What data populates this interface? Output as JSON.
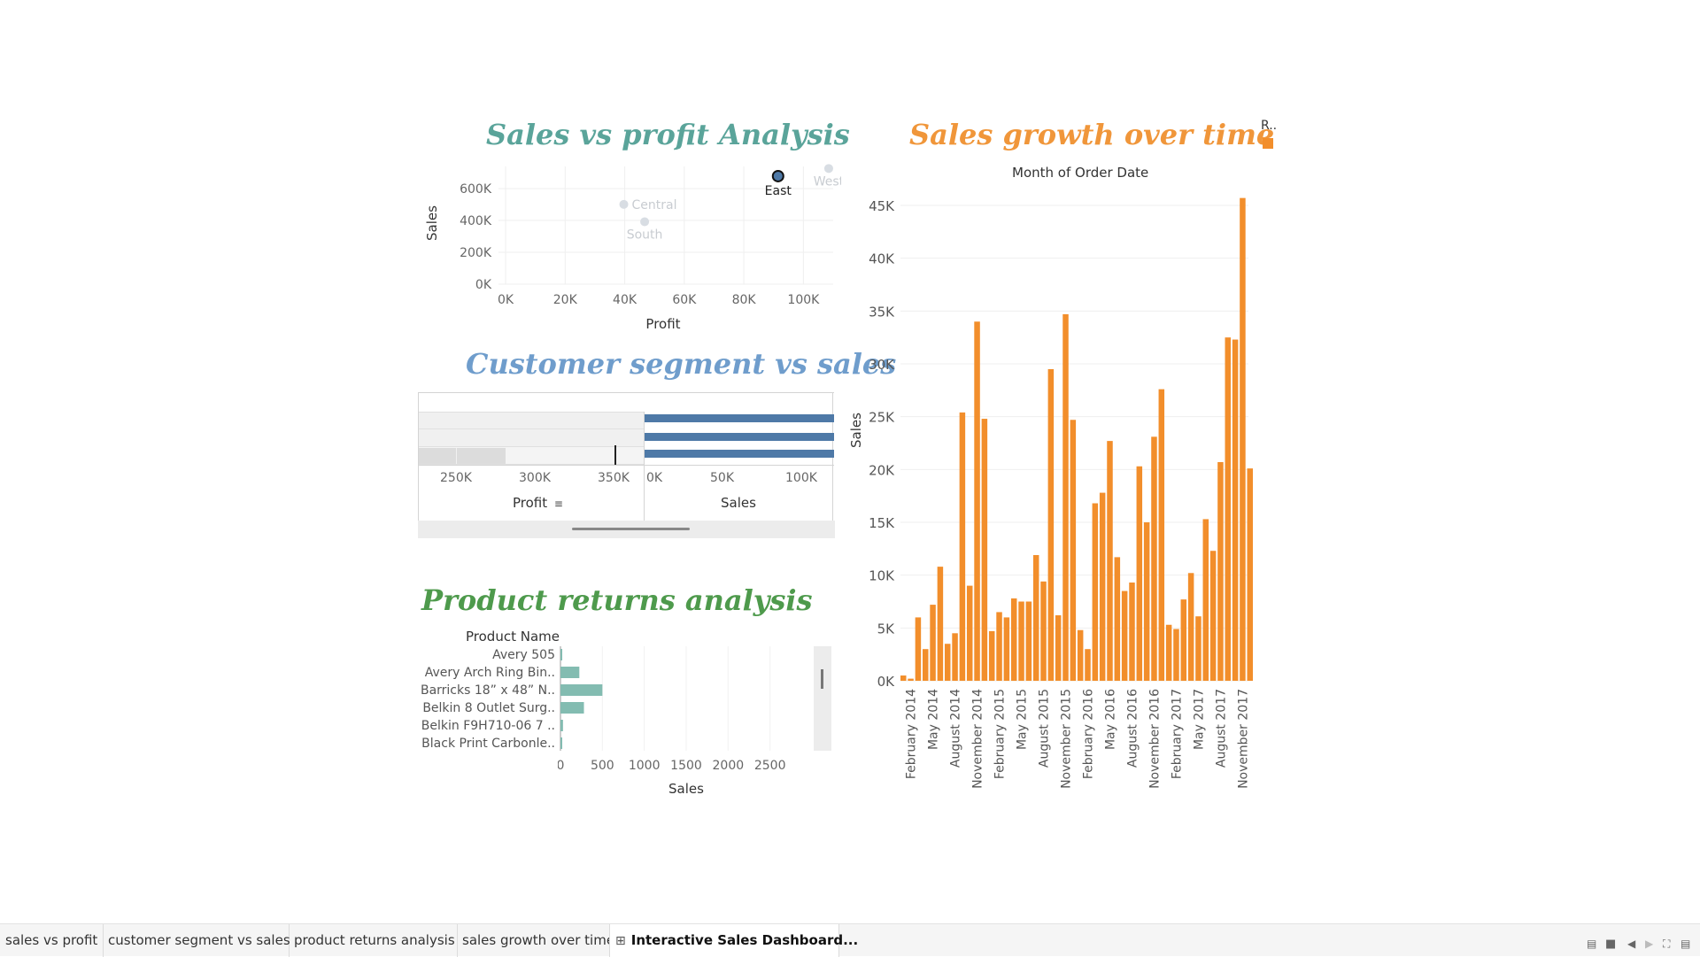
{
  "titles": {
    "scatter": "Sales vs profit Analysis",
    "segment": "Customer segment vs sales",
    "returns": "Product returns analysis",
    "growth": "Sales growth over time"
  },
  "colors": {
    "scatter_title": "#5aa49a",
    "segment_title": "#6f9dcc",
    "returns_title": "#4e9a4c",
    "growth_title": "#f0963a",
    "bar_blue": "#4e79a7",
    "bar_teal": "#83bcb1",
    "bar_orange": "#f28e2b"
  },
  "legend": {
    "title": "R..",
    "swatch_color": "#f28e2b"
  },
  "tabs": [
    {
      "label": "sales vs profit"
    },
    {
      "label": "customer segment vs sales"
    },
    {
      "label": "product returns analysis"
    },
    {
      "label": "sales growth over time"
    },
    {
      "label": "Interactive Sales Dashboard...",
      "active": true,
      "icon": "dashboard-grid-icon"
    }
  ],
  "chart_data": [
    {
      "id": "scatter",
      "type": "scatter",
      "xlabel": "Profit",
      "ylabel": "Sales",
      "x_ticks": [
        "0K",
        "20K",
        "40K",
        "60K",
        "80K",
        "100K"
      ],
      "y_ticks": [
        "0K",
        "200K",
        "400K",
        "600K"
      ],
      "xlim": [
        0,
        110000
      ],
      "ylim": [
        0,
        750000
      ],
      "points": [
        {
          "label": "East",
          "x": 91500,
          "y": 678000,
          "selected": true
        },
        {
          "label": "West",
          "x": 108500,
          "y": 726000,
          "selected": false
        },
        {
          "label": "Central",
          "x": 39700,
          "y": 501000,
          "selected": false
        },
        {
          "label": "South",
          "x": 46700,
          "y": 392000,
          "selected": false
        }
      ]
    },
    {
      "id": "segment",
      "type": "bar",
      "orientation": "horizontal",
      "left_axis": {
        "label": "Profit",
        "ticks": [
          "250K",
          "300K",
          "350K"
        ],
        "sort_icon": "sort-descending-icon"
      },
      "right_axis": {
        "label": "Sales",
        "ticks": [
          "0K",
          "50K",
          "100K"
        ]
      },
      "rows": 3
    },
    {
      "id": "returns",
      "type": "bar",
      "orientation": "horizontal",
      "row_header": "Product Name",
      "xlabel": "Sales",
      "x_ticks": [
        "0",
        "500",
        "1000",
        "1500",
        "2000",
        "2500"
      ],
      "xlim": [
        0,
        3000
      ],
      "categories": [
        "Avery 505",
        "Avery Arch Ring Bin..",
        "Barricks 18” x 48” N..",
        "Belkin 8 Outlet Surg..",
        "Belkin F9H710-06 7 ..",
        "Black Print Carbonle.."
      ],
      "values": [
        5,
        225,
        500,
        280,
        30,
        8
      ]
    },
    {
      "id": "growth",
      "type": "bar",
      "title": "Month of Order Date",
      "ylabel": "Sales",
      "y_ticks": [
        "0K",
        "5K",
        "10K",
        "15K",
        "20K",
        "25K",
        "30K",
        "35K",
        "40K",
        "45K"
      ],
      "ylim": [
        0,
        45000
      ],
      "x_tick_labels": [
        "February 2014",
        "May 2014",
        "August 2014",
        "November 2014",
        "February 2015",
        "May 2015",
        "August 2015",
        "November 2015",
        "February 2016",
        "May 2016",
        "August 2016",
        "November 2016",
        "February 2017",
        "May 2017",
        "August 2017",
        "November 2017"
      ],
      "values": [
        500,
        200,
        6000,
        3000,
        7200,
        10800,
        3500,
        4500,
        25400,
        9000,
        34000,
        24800,
        4700,
        6500,
        6000,
        7800,
        7500,
        7500,
        11900,
        9400,
        29500,
        6200,
        34700,
        24700,
        4800,
        3000,
        16800,
        17800,
        22700,
        11700,
        8500,
        9300,
        20300,
        15000,
        23100,
        27600,
        5300,
        4900,
        7700,
        10200,
        6100,
        15300,
        12300,
        20700,
        32500,
        32300,
        45700,
        20100
      ]
    }
  ]
}
